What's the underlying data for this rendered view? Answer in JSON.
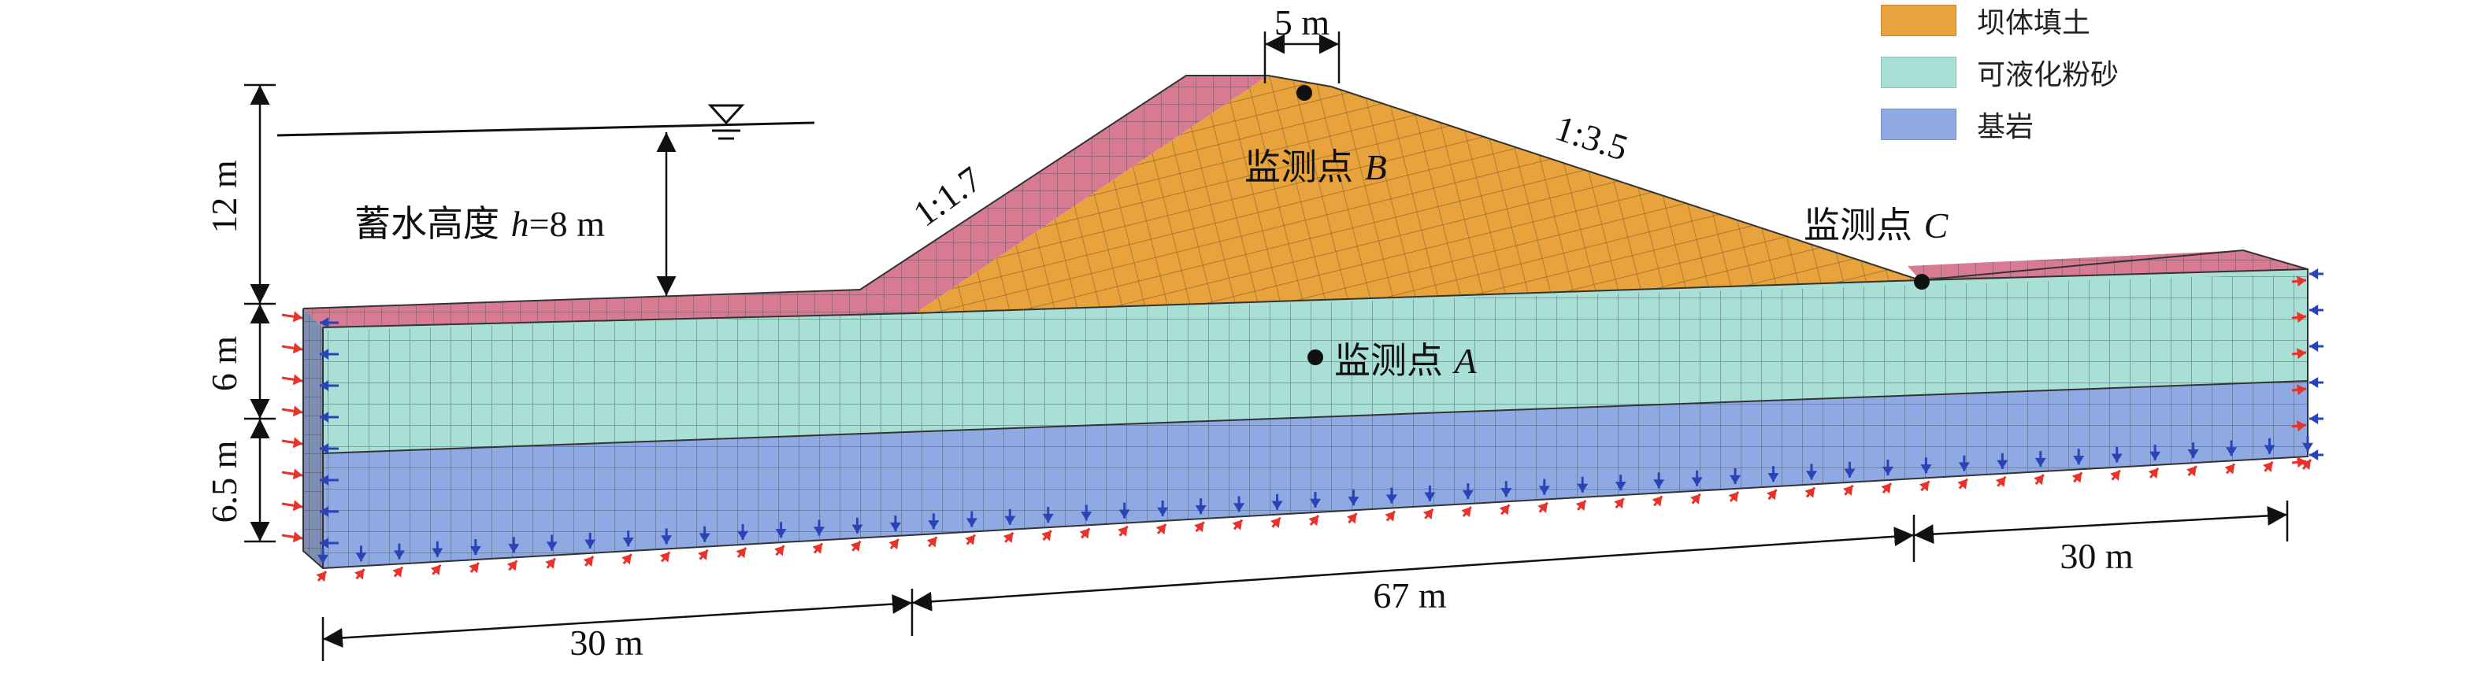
{
  "diagram": {
    "materials": [
      {
        "id": "fill",
        "label": "坝体填土",
        "color": "#e8a33c"
      },
      {
        "id": "silt",
        "label": "可液化粉砂",
        "color": "#a8e0d6"
      },
      {
        "id": "bedrock",
        "label": "基岩",
        "color": "#8fa9e2"
      }
    ],
    "other_colors": {
      "pink": "#d97a93",
      "boundary_red": "#e8322a",
      "boundary_blue": "#2a44b8"
    },
    "dimensions": {
      "crest_width": "5 m",
      "left_height": "12 m",
      "silt_thickness": "6 m",
      "bedrock_thickness": "6.5 m",
      "left_length": "30 m",
      "middle_length": "67 m",
      "right_length": "30 m"
    },
    "water_level": {
      "label": "蓄水高度 ",
      "h_symbol": "h",
      "h_value": "=8 m"
    },
    "slopes": {
      "upstream": "1:1.7",
      "downstream": "1:3.5"
    },
    "monitoring_points": {
      "prefix": "监测点 ",
      "A": "A",
      "B": "B",
      "C": "C"
    }
  }
}
